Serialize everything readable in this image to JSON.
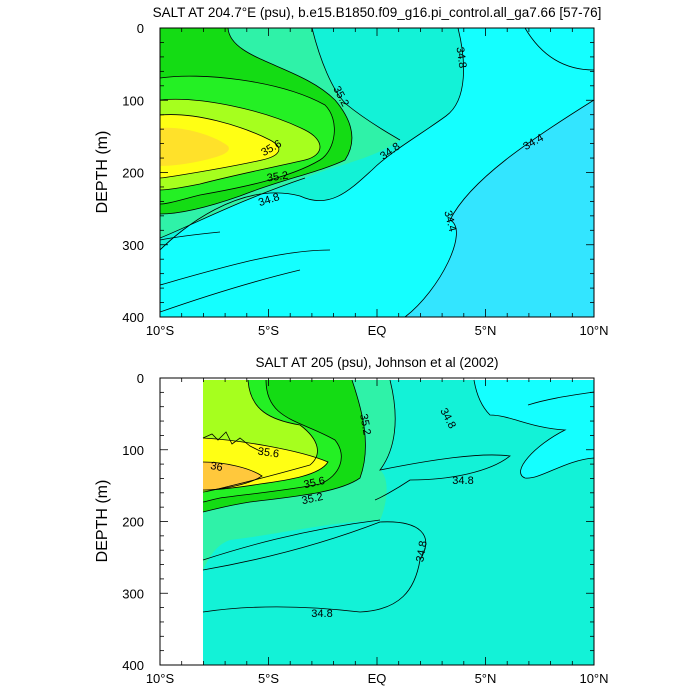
{
  "chart_data": [
    {
      "type": "contour",
      "title": "SALT AT 204.7°E (psu), b.e15.B1850.f09_g16.pi_control.all_ga7.66 [57-76]",
      "ylabel": "DEPTH (m)",
      "xlim": [
        -10,
        10
      ],
      "ylim": [
        400,
        0
      ],
      "x_ticks": [
        "10°S",
        "5°S",
        "EQ",
        "5°N",
        "10°N"
      ],
      "y_ticks": [
        "0",
        "100",
        "200",
        "300",
        "400"
      ],
      "contour_labels": [
        "35.2",
        "34.8",
        "35.6",
        "35.2",
        "34.8",
        "34.8",
        "34.4",
        "34.4"
      ],
      "fill_colors": {
        "34.4": "#33e5ff",
        "34.6": "#14ffff",
        "34.8": "#13f2d7",
        "35.0": "#2ff2a8",
        "35.2": "#14dc14",
        "35.4": "#24f024",
        "35.6": "#a6ff1e",
        "35.8": "#ffff14",
        "36.0": "#ffc83c"
      },
      "depth_grid": [
        0,
        50,
        100,
        150,
        200,
        250,
        300,
        350,
        400
      ],
      "lat_grid": [
        -10,
        -8,
        -6,
        -4,
        -2,
        0,
        2,
        4,
        6,
        8,
        10
      ],
      "salinity": [
        [
          35.28,
          35.28,
          35.22,
          35.1,
          34.98,
          34.86,
          34.74,
          34.58,
          34.54,
          34.5,
          34.42
        ],
        [
          35.32,
          35.32,
          35.24,
          35.12,
          34.95,
          34.84,
          34.72,
          34.62,
          34.58,
          34.46,
          34.38
        ],
        [
          35.65,
          35.62,
          35.4,
          35.18,
          34.92,
          34.82,
          34.7,
          34.58,
          34.5,
          34.42,
          34.32
        ],
        [
          35.92,
          35.88,
          35.58,
          35.2,
          34.9,
          34.77,
          34.66,
          34.55,
          34.47,
          34.38,
          34.3
        ],
        [
          35.3,
          35.25,
          35.05,
          34.95,
          34.83,
          34.7,
          34.6,
          34.52,
          34.45,
          34.35,
          34.28
        ],
        [
          35.0,
          34.95,
          34.88,
          34.82,
          34.74,
          34.62,
          34.55,
          34.48,
          34.42,
          34.34,
          34.28
        ],
        [
          34.82,
          34.77,
          34.7,
          34.68,
          34.63,
          34.55,
          34.5,
          34.42,
          34.38,
          34.32,
          34.28
        ],
        [
          34.62,
          34.58,
          34.56,
          34.54,
          34.52,
          34.5,
          34.46,
          34.4,
          34.36,
          34.3,
          34.26
        ],
        [
          34.52,
          34.5,
          34.48,
          34.47,
          34.46,
          34.44,
          34.42,
          34.38,
          34.34,
          34.3,
          34.26
        ]
      ]
    },
    {
      "type": "contour",
      "title": "SALT AT 205 (psu), Johnson et al (2002)",
      "ylabel": "DEPTH (m)",
      "xlim": [
        -10,
        10
      ],
      "ylim": [
        400,
        0
      ],
      "x_ticks": [
        "10°S",
        "5°S",
        "EQ",
        "5°N",
        "10°N"
      ],
      "y_ticks": [
        "0",
        "100",
        "200",
        "300",
        "400"
      ],
      "contour_labels": [
        "35.2",
        "34.8",
        "35.6",
        "36",
        "35.6",
        "35.2",
        "34.8",
        "34.8",
        "34.8"
      ],
      "data_lat_range": [
        -8,
        10
      ],
      "fill_colors": {
        "34.6": "#14ffff",
        "34.8": "#13f2d7",
        "35.0": "#2ff2a8",
        "35.2": "#14dc14",
        "35.4": "#24f024",
        "35.6": "#a6ff1e",
        "35.8": "#ffff14",
        "36.0": "#ffc83c"
      },
      "depth_grid": [
        10,
        60,
        110,
        160,
        210,
        260,
        310,
        360,
        400
      ],
      "lat_grid": [
        -8,
        -6,
        -4,
        -2,
        0,
        2,
        4,
        6,
        8,
        10
      ],
      "salinity": [
        [
          35.5,
          35.45,
          35.28,
          35.1,
          34.9,
          34.85,
          34.75,
          34.7,
          34.62,
          34.58
        ],
        [
          35.55,
          35.5,
          35.3,
          35.12,
          34.9,
          34.85,
          34.76,
          34.66,
          34.6,
          34.58
        ],
        [
          35.75,
          35.7,
          35.6,
          35.3,
          34.95,
          34.85,
          34.82,
          34.7,
          34.62,
          34.58
        ],
        [
          36.1,
          35.95,
          35.6,
          35.3,
          34.95,
          34.86,
          34.8,
          34.72,
          34.7,
          34.65
        ],
        [
          35.22,
          35.2,
          35.0,
          34.98,
          34.86,
          34.82,
          34.8,
          34.78,
          34.76,
          34.76
        ],
        [
          34.95,
          34.9,
          34.86,
          34.84,
          34.82,
          34.8,
          34.78,
          34.78,
          34.76,
          34.76
        ],
        [
          34.84,
          34.84,
          34.82,
          34.82,
          34.8,
          34.78,
          34.76,
          34.76,
          34.76,
          34.76
        ],
        [
          34.76,
          34.76,
          34.76,
          34.76,
          34.76,
          34.76,
          34.76,
          34.76,
          34.76,
          34.76
        ],
        [
          34.76,
          34.76,
          34.76,
          34.76,
          34.76,
          34.76,
          34.76,
          34.76,
          34.76,
          34.76
        ]
      ]
    }
  ]
}
